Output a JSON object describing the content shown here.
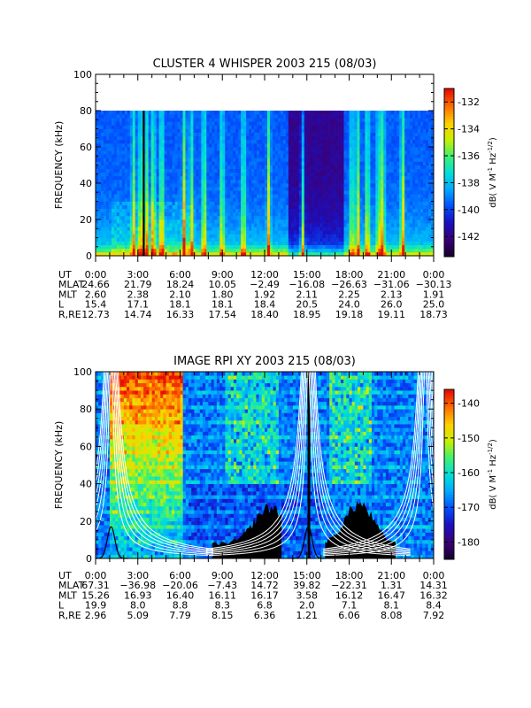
{
  "chart_data": [
    {
      "type": "heatmap",
      "title": "CLUSTER 4 WHISPER 2003 215 (08/03)",
      "ylabel": "FREQUENCY (kHz)",
      "ylim": [
        0,
        100
      ],
      "yticks": [
        "0",
        "20",
        "40",
        "60",
        "80",
        "100"
      ],
      "xlim": [
        "0:00",
        "24:00"
      ],
      "data_top_khz": 80,
      "colorbar": {
        "label": "dB( V M⁻¹ Hz⁻¹ᐟ²)",
        "label_parts": [
          "dB( V M",
          "-1",
          " Hz",
          "-1/2",
          ")"
        ],
        "range": [
          -143.5,
          -131
        ],
        "ticks": [
          "-132",
          "-134",
          "-136",
          "-138",
          "-140",
          "-142"
        ]
      },
      "ephemeris": {
        "labels": [
          "UT",
          "MLAT",
          "MLT",
          "L",
          "R,RE"
        ],
        "rows": [
          [
            "0:00",
            "3:00",
            "6:00",
            "9:00",
            "12:00",
            "15:00",
            "18:00",
            "21:00",
            "0:00"
          ],
          [
            "24.66",
            "21.79",
            "18.24",
            "10.05",
            "−2.49",
            "−16.08",
            "−26.63",
            "−31.06",
            "−30.13"
          ],
          [
            "2.60",
            "2.38",
            "2.10",
            "1.80",
            "1.92",
            "2.11",
            "2.25",
            "2.13",
            "1.91"
          ],
          [
            "15.4",
            "17.1",
            "18.1",
            "18.1",
            "18.4",
            "20.5",
            "24.0",
            "26.0",
            "25.0"
          ],
          [
            "12.73",
            "14.74",
            "16.33",
            "17.54",
            "18.40",
            "18.95",
            "19.18",
            "19.11",
            "18.73"
          ]
        ]
      }
    },
    {
      "type": "heatmap",
      "title": "IMAGE RPI XY 2003 215 (08/03)",
      "ylabel": "FREQUENCY (kHz)",
      "ylim": [
        0,
        100
      ],
      "yticks": [
        "0",
        "20",
        "40",
        "60",
        "80",
        "100"
      ],
      "xlim": [
        "0:00",
        "24:00"
      ],
      "colorbar": {
        "label": "dB( V M⁻¹ Hz⁻¹ᐟ²)",
        "label_parts": [
          "dB( V M",
          "-1",
          " Hz",
          "-1/2",
          ")"
        ],
        "range": [
          -185,
          -136
        ],
        "ticks": [
          "-140",
          "-150",
          "-160",
          "-170",
          "-180"
        ]
      },
      "ephemeris": {
        "labels": [
          "UT",
          "MLAT",
          "MLT",
          "L",
          "R,RE"
        ],
        "rows": [
          [
            "0:00",
            "3:00",
            "6:00",
            "9:00",
            "12:00",
            "15:00",
            "18:00",
            "21:00",
            "0:00"
          ],
          [
            "67.31",
            "−36.98",
            "−20.06",
            "−7.43",
            "14.72",
            "39.82",
            "−22.31",
            "1.31",
            "14.31"
          ],
          [
            "15.26",
            "16.93",
            "16.40",
            "16.11",
            "16.17",
            "3.58",
            "16.12",
            "16.47",
            "16.32"
          ],
          [
            "19.9",
            "8.0",
            "8.8",
            "8.3",
            "6.8",
            "2.0",
            "7.1",
            "8.1",
            "8.4"
          ],
          [
            "2.96",
            "5.09",
            "7.79",
            "8.15",
            "6.36",
            "1.21",
            "6.06",
            "8.08",
            "7.92"
          ]
        ]
      }
    }
  ],
  "colors": {
    "colormap": [
      "#1a0030",
      "#3a007a",
      "#1a10c0",
      "#0050ff",
      "#00a8ff",
      "#00e0d8",
      "#40f070",
      "#c8f000",
      "#ffd000",
      "#ff7000",
      "#e81000"
    ]
  }
}
